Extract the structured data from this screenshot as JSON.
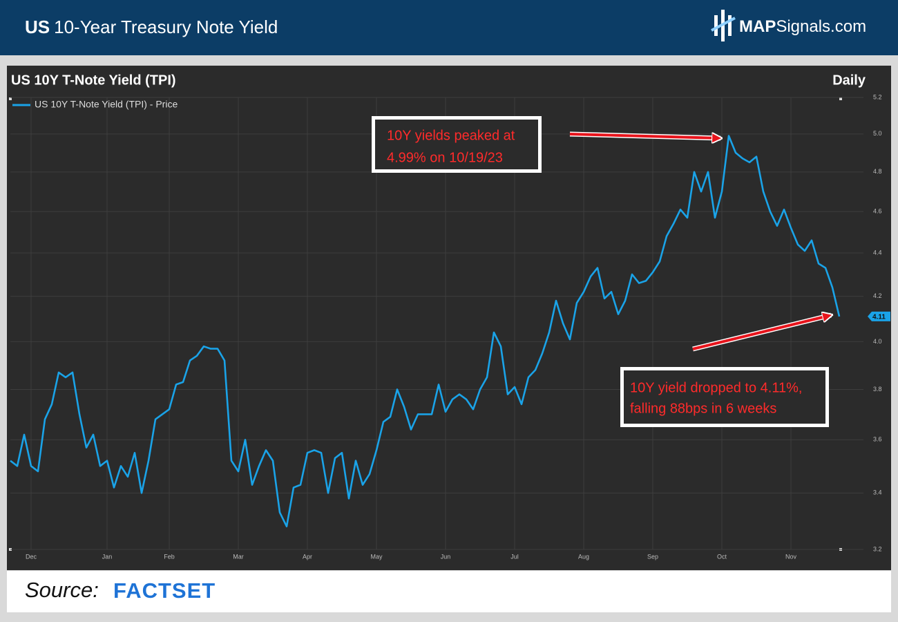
{
  "header": {
    "title_bold": "US",
    "title": "10-Year Treasury Note Yield",
    "logo_bold": "MAP",
    "logo": "Signals.com"
  },
  "footer": {
    "source_label": "Source:",
    "source": "FACTSET"
  },
  "chart_data": {
    "type": "line",
    "title": "US 10Y T-Note Yield (TPI)",
    "frequency": "Daily",
    "annotations": [
      {
        "lines": [
          "10Y yields peaked at",
          "4.99% on 10/19/23"
        ]
      },
      {
        "lines": [
          "10Y yield dropped to 4.11%,",
          "falling 88bps in 6 weeks"
        ]
      }
    ],
    "categories": [
      null,
      null,
      null,
      "Dec",
      null,
      null,
      null,
      null,
      null,
      null,
      null,
      null,
      null,
      null,
      "Jan",
      null,
      null,
      null,
      null,
      null,
      null,
      null,
      null,
      "Feb",
      null,
      null,
      null,
      null,
      null,
      null,
      null,
      null,
      null,
      "Mar",
      null,
      null,
      null,
      null,
      null,
      null,
      null,
      null,
      null,
      "Apr",
      null,
      null,
      null,
      null,
      null,
      null,
      null,
      null,
      null,
      "May",
      null,
      null,
      null,
      null,
      null,
      null,
      null,
      null,
      null,
      "Jun",
      null,
      null,
      null,
      null,
      null,
      null,
      null,
      null,
      null,
      "Jul",
      null,
      null,
      null,
      null,
      null,
      null,
      null,
      null,
      null,
      "Aug",
      null,
      null,
      null,
      null,
      null,
      null,
      null,
      null,
      null,
      "Sep",
      null,
      null,
      null,
      null,
      null,
      null,
      null,
      null,
      null,
      "Oct",
      null,
      null,
      null,
      null,
      null,
      null,
      null,
      null,
      null,
      "Nov",
      null,
      null,
      null,
      null,
      null,
      null,
      null
    ],
    "series": [
      {
        "name": "US 10Y T-Note Yield (TPI) - Price",
        "color": "#1aa3e8",
        "values": [
          3.52,
          3.5,
          3.62,
          3.5,
          3.48,
          3.68,
          3.74,
          3.87,
          3.85,
          3.87,
          3.7,
          3.57,
          3.62,
          3.5,
          3.52,
          3.42,
          3.5,
          3.46,
          3.55,
          3.4,
          3.52,
          3.68,
          3.7,
          3.72,
          3.82,
          3.83,
          3.92,
          3.94,
          3.98,
          3.97,
          3.97,
          3.92,
          3.52,
          3.48,
          3.6,
          3.43,
          3.5,
          3.56,
          3.52,
          3.33,
          3.28,
          3.42,
          3.43,
          3.55,
          3.56,
          3.55,
          3.4,
          3.53,
          3.55,
          3.38,
          3.52,
          3.43,
          3.47,
          3.56,
          3.67,
          3.69,
          3.8,
          3.73,
          3.64,
          3.7,
          3.7,
          3.7,
          3.82,
          3.71,
          3.76,
          3.78,
          3.76,
          3.72,
          3.8,
          3.85,
          4.04,
          3.98,
          3.78,
          3.81,
          3.74,
          3.85,
          3.88,
          3.95,
          4.04,
          4.18,
          4.08,
          4.01,
          4.17,
          4.22,
          4.29,
          4.33,
          4.19,
          4.22,
          4.12,
          4.18,
          4.3,
          4.26,
          4.27,
          4.31,
          4.36,
          4.48,
          4.54,
          4.61,
          4.57,
          4.8,
          4.7,
          4.8,
          4.57,
          4.7,
          4.99,
          4.9,
          4.87,
          4.85,
          4.88,
          4.7,
          4.6,
          4.53,
          4.61,
          4.52,
          4.44,
          4.41,
          4.46,
          4.35,
          4.33,
          4.24,
          4.11
        ]
      }
    ],
    "ylim": [
      3.2,
      5.2
    ],
    "yticks": [
      3.2,
      3.4,
      3.6,
      3.8,
      {
        "value": 4,
        "label": "4.0"
      },
      4.2,
      4.4,
      4.6,
      4.8,
      {
        "value": 5,
        "label": "5.0"
      },
      5.2
    ],
    "log_scale": true,
    "grid": true,
    "legend": "top-left"
  }
}
